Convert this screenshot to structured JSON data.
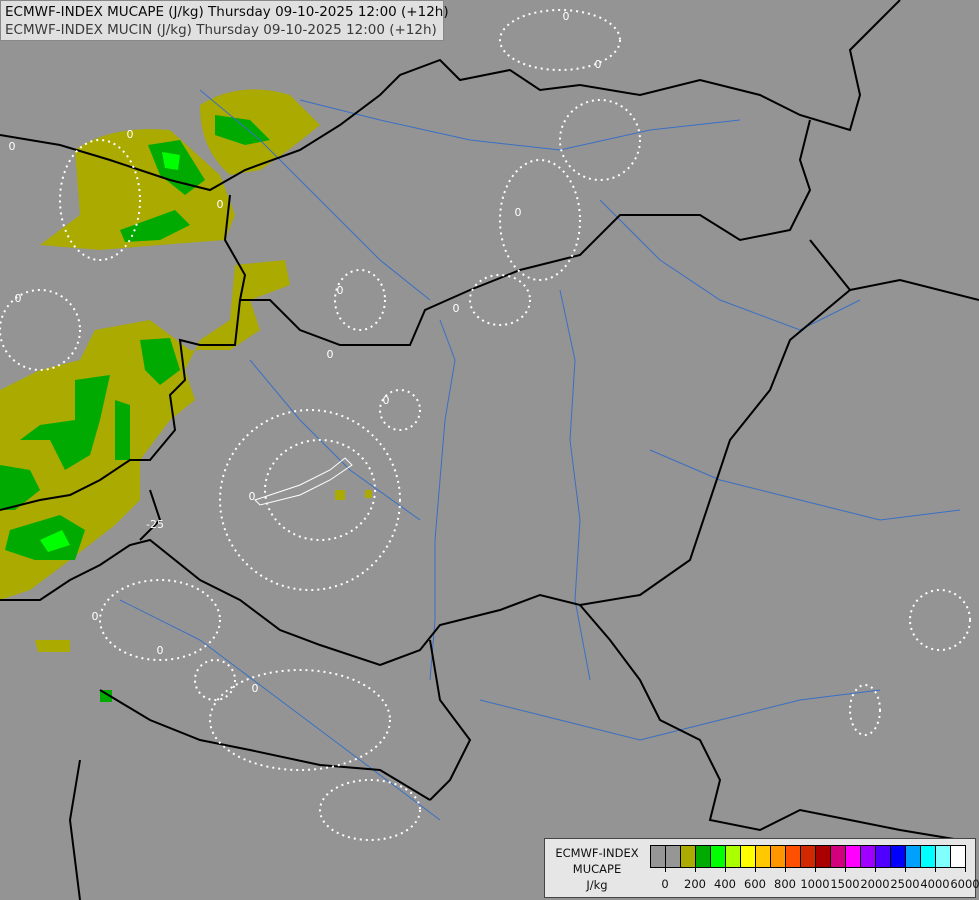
{
  "header": {
    "line1": "ECMWF-INDEX MUCAPE (J/kg) Thursday 09-10-2025 12:00 (+12h)",
    "line2": "ECMWF-INDEX MUCIN (J/kg) Thursday 09-10-2025 12:00 (+12h)"
  },
  "map": {
    "contour_labels": [
      "0",
      "0",
      "0",
      "0",
      "0",
      "0",
      "0",
      "0",
      "0",
      "0",
      "0",
      "0",
      "-25",
      "0",
      "0",
      "0"
    ],
    "background_color": "#949494",
    "border_color": "#000000",
    "river_color": "#3a6fc4",
    "cin_contour_color": "#ffffff"
  },
  "legend": {
    "title_line1": "ECMWF-INDEX",
    "title_line2": "MUCAPE",
    "unit": "J/kg",
    "colors": [
      "#969696",
      "#969696",
      "#aaaa00",
      "#00aa00",
      "#00ff00",
      "#aaff00",
      "#ffff00",
      "#ffc800",
      "#ff9600",
      "#ff5000",
      "#d22800",
      "#aa0000",
      "#d2007d",
      "#ff00ff",
      "#a000ff",
      "#5000ff",
      "#0000ff",
      "#00a0ff",
      "#00ffff",
      "#80ffff",
      "#ffffff"
    ],
    "ticks": [
      "0",
      "200",
      "400",
      "600",
      "800",
      "1000",
      "1500",
      "2000",
      "2500",
      "4000",
      "6000"
    ]
  }
}
